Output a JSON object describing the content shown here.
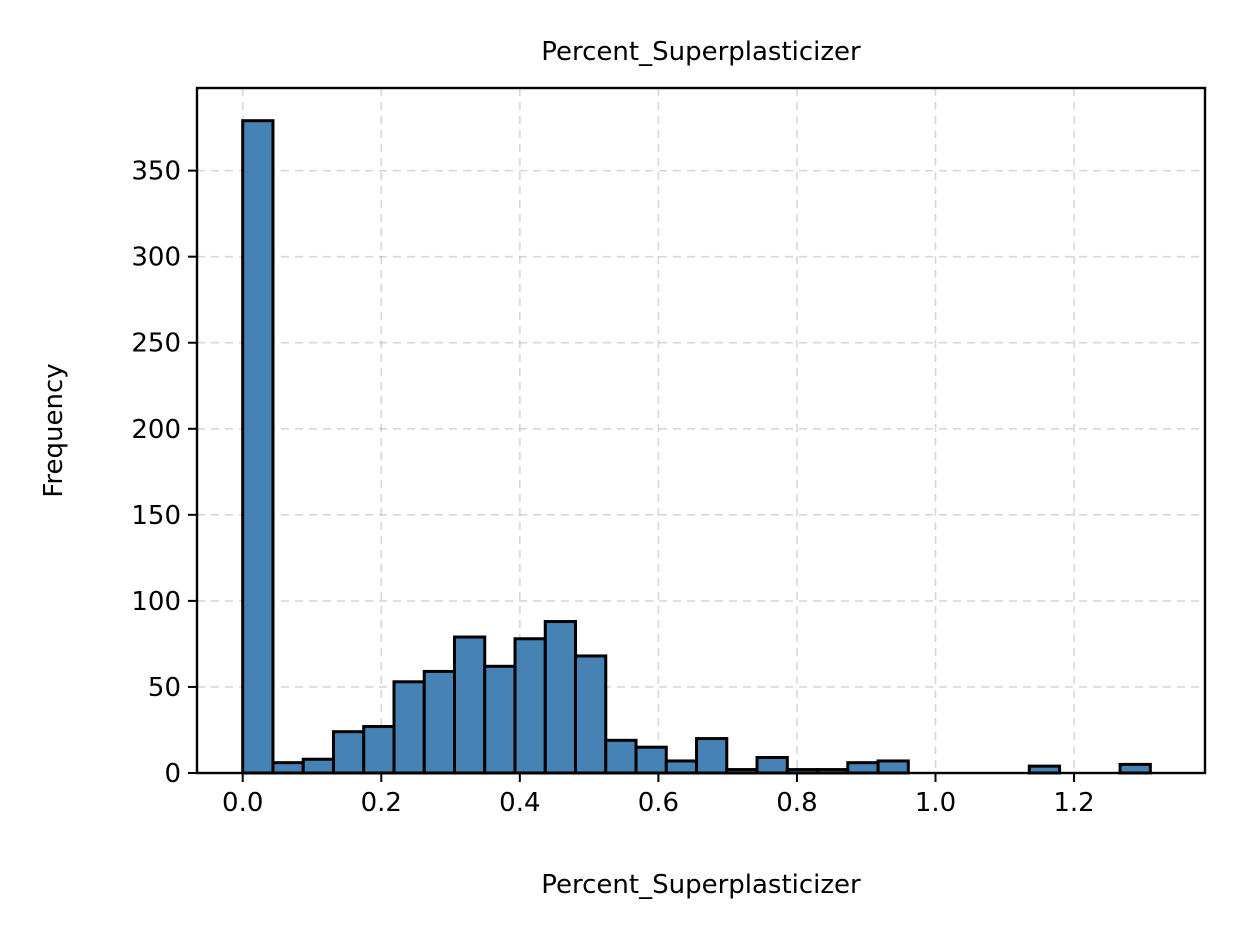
{
  "chart_data": {
    "type": "bar",
    "title": "Percent_Superplasticizer",
    "xlabel": "Percent_Superplasticizer",
    "ylabel": "Frequency",
    "xlim": [
      -0.066,
      1.389
    ],
    "ylim": [
      0,
      398
    ],
    "x_ticks": [
      0.0,
      0.2,
      0.4,
      0.6,
      0.8,
      1.0,
      1.2
    ],
    "x_tick_labels": [
      "0.0",
      "0.2",
      "0.4",
      "0.6",
      "0.8",
      "1.0",
      "1.2"
    ],
    "y_ticks": [
      0,
      50,
      100,
      150,
      200,
      250,
      300,
      350
    ],
    "y_tick_labels": [
      "0",
      "50",
      "100",
      "150",
      "200",
      "250",
      "300",
      "350"
    ],
    "grid": true,
    "bar_color": "#4682b4",
    "edge_color": "#000000",
    "bins": {
      "start": 0.0,
      "width": 0.04367,
      "counts": [
        379,
        6,
        8,
        24,
        27,
        53,
        59,
        79,
        62,
        78,
        88,
        68,
        19,
        15,
        7,
        20,
        2,
        9,
        2,
        2,
        6,
        7,
        0,
        0,
        0,
        0,
        4,
        0,
        0,
        5
      ]
    }
  }
}
